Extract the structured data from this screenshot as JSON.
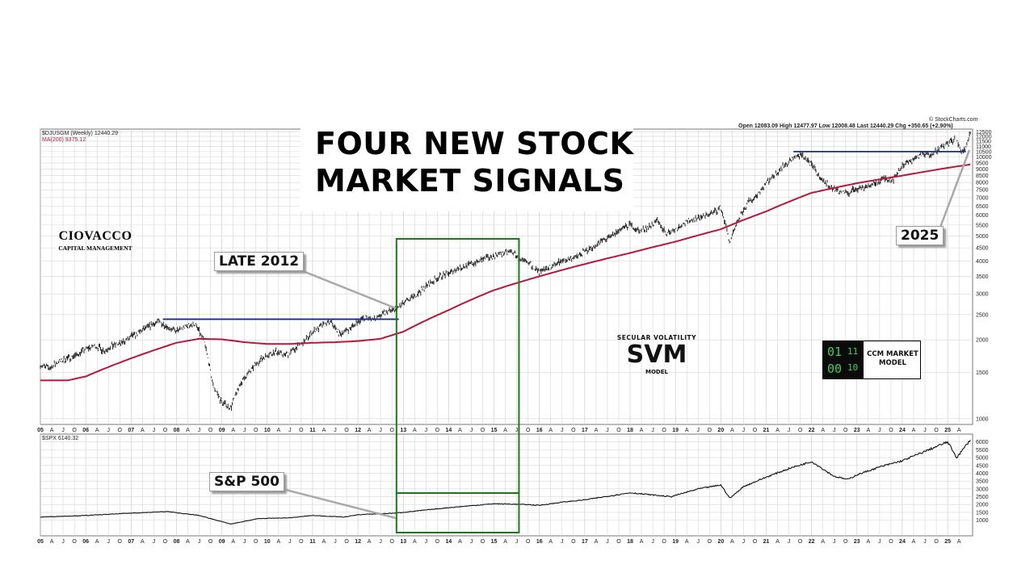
{
  "title_line1": "FOUR NEW STOCK",
  "title_line2": "MARKET SIGNALS",
  "logo": {
    "name": "CIOVACCO",
    "subtitle": "CAPITAL MANAGEMENT"
  },
  "annotations": {
    "late_2012": "LATE 2012",
    "sp500": "S&P 500",
    "year_2025": "2025"
  },
  "svm": {
    "top": "SECULAR  VOLATILITY",
    "main": "SVM",
    "bottom": "MODEL"
  },
  "ccm": {
    "d1": "01",
    "d2": "11",
    "d3": "00",
    "d4": "10",
    "line1": "CCM MARKET",
    "line2": "MODEL"
  },
  "header": {
    "symbol": "$DJUSGM (Weekly) 12440.29",
    "ma": "MA(200) 9375.12",
    "source": "© StockCharts.com",
    "quote": "Open 12083.09  High 12477.97  Low 12008.48  Last 12440.29  Chg +350.65 (+2.90%)",
    "lower_symbol": "$SPX 6140.32"
  },
  "colors": {
    "price": "#111111",
    "ma": "#b5173e",
    "resistance": "#1c2a8e",
    "highlight_box": "#1a7a1a",
    "grid": "#d6d6d6"
  },
  "chart_data": [
    {
      "type": "line",
      "scale": "log",
      "ylim": [
        950,
        12800
      ],
      "xlim": [
        2005.0,
        2025.55
      ],
      "y_ticks": [
        1000,
        1500,
        2000,
        2500,
        3000,
        3500,
        4000,
        4500,
        5000,
        5500,
        6000,
        6500,
        7000,
        7500,
        8000,
        8500,
        9000,
        9500,
        10000,
        10500,
        11000,
        11500,
        12000,
        12500
      ],
      "x_tick_labels": [
        "05",
        "A",
        "J",
        "O",
        "06",
        "A",
        "J",
        "O",
        "07",
        "A",
        "J",
        "O",
        "08",
        "A",
        "J",
        "O",
        "09",
        "A",
        "J",
        "O",
        "10",
        "A",
        "J",
        "O",
        "11",
        "A",
        "J",
        "O",
        "12",
        "A",
        "J",
        "O",
        "13",
        "A",
        "J",
        "O",
        "14",
        "A",
        "J",
        "O",
        "15",
        "A",
        "J",
        "O",
        "16",
        "A",
        "J",
        "O",
        "17",
        "A",
        "J",
        "O",
        "18",
        "A",
        "J",
        "O",
        "19",
        "A",
        "J",
        "O",
        "20",
        "A",
        "J",
        "O",
        "21",
        "A",
        "J",
        "O",
        "22",
        "A",
        "J",
        "O",
        "23",
        "A",
        "J",
        "O",
        "24",
        "A",
        "J",
        "O",
        "25",
        "A"
      ],
      "series": [
        {
          "name": "$DJUSGM (Weekly) 12440.29",
          "x": [
            2005.0,
            2005.2,
            2005.4,
            2005.6,
            2005.8,
            2006.0,
            2006.2,
            2006.4,
            2006.6,
            2006.8,
            2007.0,
            2007.2,
            2007.4,
            2007.6,
            2007.8,
            2008.0,
            2008.2,
            2008.4,
            2008.6,
            2008.8,
            2009.0,
            2009.2,
            2009.4,
            2009.6,
            2009.8,
            2010.0,
            2010.2,
            2010.4,
            2010.6,
            2010.8,
            2011.0,
            2011.2,
            2011.4,
            2011.6,
            2011.8,
            2012.0,
            2012.2,
            2012.4,
            2012.6,
            2012.8,
            2013.0,
            2013.2,
            2013.4,
            2013.6,
            2013.8,
            2014.0,
            2014.2,
            2014.4,
            2014.6,
            2014.8,
            2015.0,
            2015.2,
            2015.4,
            2015.6,
            2015.8,
            2016.0,
            2016.2,
            2016.4,
            2016.6,
            2016.8,
            2017.0,
            2017.2,
            2017.4,
            2017.6,
            2017.8,
            2018.0,
            2018.2,
            2018.4,
            2018.6,
            2018.8,
            2019.0,
            2019.2,
            2019.4,
            2019.6,
            2019.8,
            2020.0,
            2020.2,
            2020.4,
            2020.6,
            2020.8,
            2021.0,
            2021.2,
            2021.4,
            2021.6,
            2021.8,
            2022.0,
            2022.2,
            2022.4,
            2022.6,
            2022.8,
            2023.0,
            2023.2,
            2023.4,
            2023.6,
            2023.8,
            2024.0,
            2024.2,
            2024.4,
            2024.6,
            2024.8,
            2025.0,
            2025.2,
            2025.3,
            2025.4,
            2025.5
          ],
          "values": [
            1600,
            1560,
            1650,
            1700,
            1750,
            1850,
            1900,
            1820,
            1900,
            1950,
            2050,
            2150,
            2250,
            2350,
            2250,
            2150,
            2250,
            2300,
            2000,
            1350,
            1150,
            1100,
            1350,
            1500,
            1650,
            1750,
            1800,
            1750,
            1850,
            1950,
            2150,
            2250,
            2350,
            2100,
            2200,
            2350,
            2450,
            2400,
            2550,
            2600,
            2750,
            2900,
            3100,
            3300,
            3500,
            3600,
            3750,
            3850,
            3950,
            4100,
            4200,
            4300,
            4350,
            4000,
            3900,
            3600,
            3750,
            3950,
            4050,
            4150,
            4350,
            4550,
            4800,
            5000,
            5300,
            5500,
            5200,
            5400,
            5700,
            5100,
            5300,
            5600,
            5800,
            5900,
            6100,
            6400,
            4700,
            5800,
            6700,
            7200,
            8000,
            8600,
            9300,
            9900,
            10200,
            9300,
            8300,
            7700,
            7400,
            7300,
            7600,
            7700,
            7900,
            8300,
            8200,
            9300,
            9700,
            10200,
            10300,
            10700,
            11300,
            11700,
            10300,
            11000,
            12440
          ]
        },
        {
          "name": "MA(200) 9375.12",
          "x": [
            2005.0,
            2005.6,
            2006.0,
            2007.0,
            2008.0,
            2008.5,
            2009.0,
            2009.5,
            2010.0,
            2010.5,
            2011.0,
            2011.5,
            2012.0,
            2012.5,
            2013.0,
            2014.0,
            2015.0,
            2016.0,
            2017.0,
            2018.0,
            2019.0,
            2020.0,
            2021.0,
            2022.0,
            2023.0,
            2024.0,
            2025.0,
            2025.5
          ],
          "values": [
            1400,
            1400,
            1450,
            1700,
            1950,
            2020,
            2010,
            1960,
            1930,
            1930,
            1950,
            1960,
            1980,
            2020,
            2150,
            2600,
            3100,
            3500,
            3900,
            4300,
            4750,
            5300,
            6200,
            7300,
            7950,
            8500,
            9100,
            9375
          ]
        }
      ],
      "resistance": [
        {
          "x": [
            2007.7,
            2012.9
          ],
          "value": 2400
        },
        {
          "x": [
            2021.6,
            2025.4
          ],
          "value": 10500
        }
      ]
    },
    {
      "type": "line",
      "ylim": [
        0,
        6500
      ],
      "y_ticks": [
        1000,
        1500,
        2000,
        2500,
        3000,
        3500,
        4000,
        4500,
        5000,
        5500,
        6000
      ],
      "series": [
        {
          "name": "$SPX 6140.32",
          "x": [
            2005.0,
            2006.0,
            2007.0,
            2007.8,
            2008.5,
            2009.2,
            2009.8,
            2010.5,
            2011.0,
            2011.7,
            2012.0,
            2012.8,
            2013.0,
            2014.0,
            2015.0,
            2015.7,
            2016.0,
            2016.5,
            2017.0,
            2018.0,
            2018.9,
            2019.5,
            2020.0,
            2020.2,
            2020.5,
            2021.0,
            2021.5,
            2022.0,
            2022.5,
            2022.8,
            2023.0,
            2023.5,
            2024.0,
            2024.5,
            2025.0,
            2025.2,
            2025.5
          ],
          "values": [
            1200,
            1300,
            1450,
            1550,
            1300,
            750,
            1100,
            1150,
            1300,
            1200,
            1350,
            1450,
            1500,
            1800,
            2050,
            2000,
            1950,
            2150,
            2300,
            2750,
            2500,
            3000,
            3250,
            2400,
            3150,
            3750,
            4300,
            4750,
            3800,
            3600,
            3900,
            4400,
            4800,
            5400,
            6000,
            5000,
            6140
          ]
        }
      ]
    }
  ]
}
